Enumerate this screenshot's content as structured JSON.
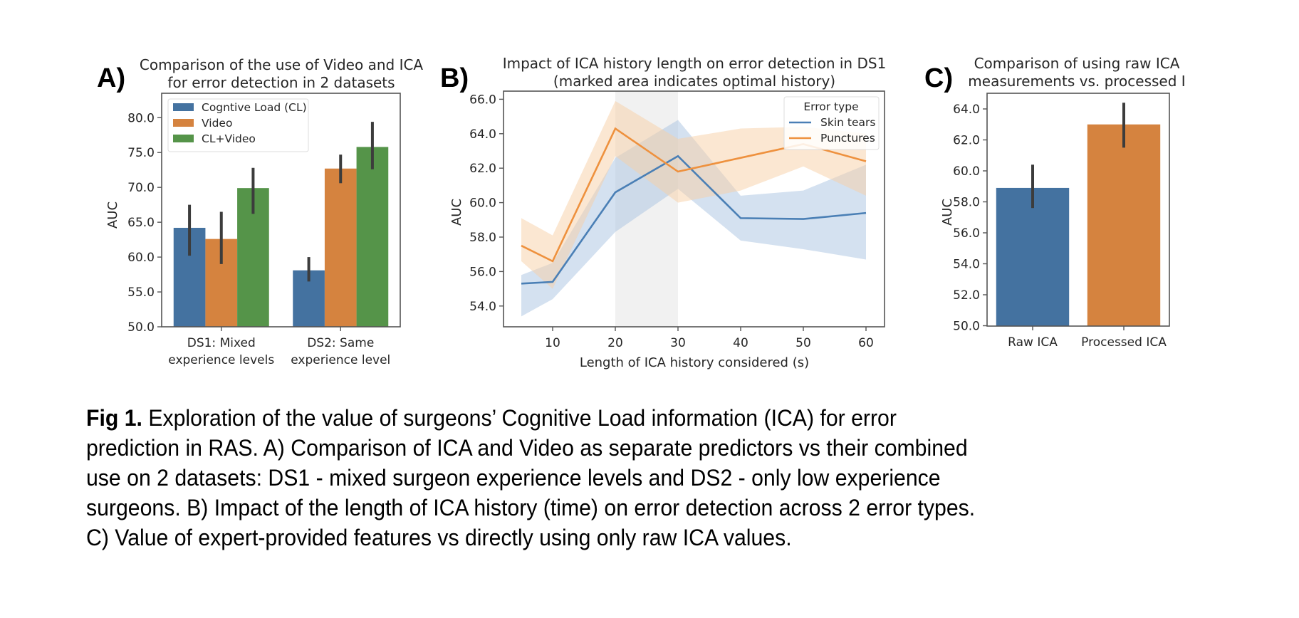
{
  "caption": {
    "label": "Fig 1.",
    "lines": [
      " Exploration of the value of surgeons’ Cognitive Load information (ICA) for error",
      "prediction in RAS. A) Comparison of ICA and Video as separate predictors vs their combined",
      "use on 2 datasets: DS1 - mixed surgeon experience levels and DS2 - only low experience",
      "surgeons. B) Impact of the length of ICA history (time) on error detection across 2 error types.",
      "C) Value of expert-provided features vs directly using only raw ICA values."
    ]
  },
  "colors": {
    "blue": "#4472a0",
    "orange": "#d5833f",
    "green": "#559449",
    "line_blue": "#4a7fb5",
    "line_orange": "#ee913e",
    "band_blue": "#a9c4e2",
    "band_orange": "#f8cfa5",
    "shade": "#e5e5e5"
  },
  "chart_data": [
    {
      "panel": "A)",
      "type": "bar",
      "title": [
        "Comparison of the use of Video and ICA",
        "for error detection in 2 datasets"
      ],
      "xlabel": "",
      "ylabel": "AUC",
      "ylim": [
        50,
        83.5
      ],
      "yticks": [
        50.0,
        55.0,
        60.0,
        65.0,
        70.0,
        75.0,
        80.0
      ],
      "categories": [
        [
          "DS1: Mixed",
          "experience levels"
        ],
        [
          "DS2: Same",
          "experience level"
        ]
      ],
      "legend": {
        "position": "upper-left"
      },
      "series": [
        {
          "name": "Cogntive Load (CL)",
          "color_key": "blue",
          "values": [
            64.2,
            58.1
          ],
          "err_low": [
            60.2,
            56.5
          ],
          "err_high": [
            67.5,
            60.0
          ]
        },
        {
          "name": "Video",
          "color_key": "orange",
          "values": [
            62.6,
            72.7
          ],
          "err_low": [
            59.0,
            70.6
          ],
          "err_high": [
            66.5,
            74.7
          ]
        },
        {
          "name": "CL+Video",
          "color_key": "green",
          "values": [
            69.9,
            75.8
          ],
          "err_low": [
            66.2,
            72.6
          ],
          "err_high": [
            72.8,
            79.4
          ]
        }
      ]
    },
    {
      "panel": "B)",
      "type": "line",
      "title": [
        "Impact of ICA history length on error detection in DS1",
        "(marked area indicates optimal history)"
      ],
      "xlabel": "Length of ICA history considered (s)",
      "ylabel": "AUC",
      "xlim": [
        2.5,
        62.5
      ],
      "ylim": [
        52.7,
        66.6
      ],
      "xticks": [
        10,
        20,
        30,
        40,
        50,
        60
      ],
      "yticks": [
        54.0,
        56.0,
        58.0,
        60.0,
        62.0,
        64.0,
        66.0
      ],
      "shaded_region": [
        20,
        30
      ],
      "legend": {
        "title": "Error type",
        "position": "upper-right"
      },
      "x": [
        5,
        10,
        20,
        30,
        40,
        50,
        60
      ],
      "series": [
        {
          "name": "Skin tears",
          "color_key": "line_blue",
          "band_key": "band_blue",
          "values": [
            55.3,
            55.4,
            60.6,
            62.7,
            59.1,
            59.05,
            59.4
          ],
          "ci_low": [
            53.4,
            54.4,
            58.3,
            60.8,
            57.8,
            57.3,
            56.7
          ],
          "ci_high": [
            55.8,
            56.5,
            62.6,
            64.8,
            60.4,
            60.7,
            62.2
          ]
        },
        {
          "name": "Punctures",
          "color_key": "line_orange",
          "band_key": "band_orange",
          "values": [
            57.5,
            56.6,
            64.3,
            61.8,
            62.6,
            63.4,
            62.4
          ],
          "ci_low": [
            56.6,
            55.0,
            62.7,
            60.0,
            60.7,
            62.1,
            60.4
          ],
          "ci_high": [
            59.1,
            58.1,
            65.9,
            63.7,
            64.3,
            64.4,
            64.0
          ]
        }
      ]
    },
    {
      "panel": "C)",
      "type": "bar",
      "title": [
        "Comparison of using raw ICA",
        "measurements vs. processed I"
      ],
      "xlabel": "",
      "ylabel": "AUC",
      "ylim": [
        50,
        65.0
      ],
      "yticks": [
        50.0,
        52.0,
        54.0,
        56.0,
        58.0,
        60.0,
        62.0,
        64.0
      ],
      "categories": [
        [
          "Raw ICA"
        ],
        [
          "Processed ICA"
        ]
      ],
      "values": [
        58.9,
        63.0
      ],
      "color_keys": [
        "blue",
        "orange"
      ],
      "err_low": [
        57.6,
        61.5
      ],
      "err_high": [
        60.4,
        64.4
      ]
    }
  ]
}
